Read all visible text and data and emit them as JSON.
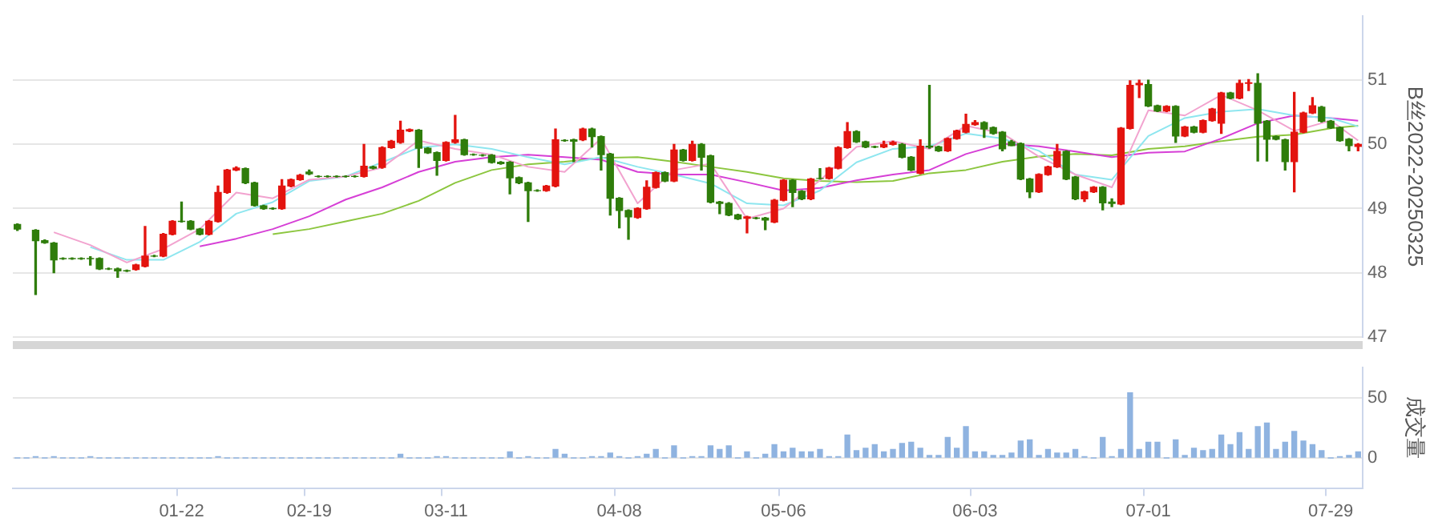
{
  "chart_data": [
    {
      "type": "candlestick",
      "tick_labels": "y",
      "ylabel": "B丝2022-20250325",
      "categories": [
        null,
        null,
        null,
        null,
        null,
        null,
        null,
        null,
        null,
        null,
        null,
        null,
        null,
        null,
        null,
        null,
        null,
        null,
        null,
        null,
        null,
        null,
        null,
        null,
        null,
        null,
        null,
        null,
        null,
        null,
        null,
        null,
        null,
        null,
        null,
        null,
        null,
        null,
        null,
        null,
        null,
        null,
        null,
        null,
        null,
        null,
        null,
        null,
        null,
        null,
        null,
        null,
        null,
        null,
        null,
        null,
        null,
        null,
        null,
        null,
        null,
        null,
        null,
        null,
        null,
        null,
        null,
        null,
        null,
        null,
        null,
        null,
        null,
        null,
        null,
        null,
        null,
        null,
        null,
        null,
        null,
        null,
        null,
        null,
        null,
        null,
        null,
        null,
        null,
        null,
        null,
        null,
        null,
        null,
        null,
        null,
        null,
        null,
        null,
        null,
        null,
        null,
        null,
        null,
        null,
        null,
        null,
        null,
        null,
        null,
        null,
        null,
        null,
        null,
        null,
        null,
        null,
        null,
        null,
        null,
        null,
        null,
        null,
        null,
        null,
        null,
        null,
        null,
        null,
        null,
        null,
        null,
        null,
        null,
        null,
        null,
        null,
        null,
        null,
        null,
        null,
        null,
        null,
        null,
        null,
        null,
        null,
        null
      ],
      "ohlc": [
        [
          48.75,
          48.76,
          48.66,
          48.68
        ],
        null,
        [
          48.66,
          48.67,
          47.66,
          48.5
        ],
        [
          48.5,
          48.51,
          48.46,
          48.47
        ],
        [
          48.46,
          48.47,
          48.0,
          48.2
        ],
        [
          48.22,
          48.23,
          48.21,
          48.22
        ],
        [
          48.22,
          48.23,
          48.21,
          48.22
        ],
        [
          48.22,
          48.23,
          48.21,
          48.22
        ],
        [
          48.22,
          48.25,
          48.12,
          48.22
        ],
        [
          48.22,
          48.23,
          48.05,
          48.06
        ],
        [
          48.06,
          48.07,
          48.05,
          48.06
        ],
        [
          48.06,
          48.07,
          47.93,
          48.03
        ],
        [
          48.03,
          48.04,
          48.02,
          48.03
        ],
        [
          48.05,
          48.13,
          48.04,
          48.12
        ],
        [
          48.1,
          48.72,
          48.09,
          48.26
        ],
        [
          48.26,
          48.27,
          48.25,
          48.26
        ],
        [
          48.26,
          48.61,
          48.25,
          48.6
        ],
        [
          48.6,
          48.81,
          48.59,
          48.8
        ],
        [
          48.8,
          49.1,
          48.79,
          48.8
        ],
        [
          48.8,
          48.81,
          48.67,
          48.68
        ],
        [
          48.68,
          48.69,
          48.59,
          48.6
        ],
        [
          48.6,
          48.81,
          48.59,
          48.8
        ],
        [
          48.8,
          49.35,
          48.79,
          49.25
        ],
        [
          49.25,
          49.61,
          49.24,
          49.6
        ],
        [
          49.6,
          49.65,
          49.59,
          49.63
        ],
        [
          49.62,
          49.63,
          49.39,
          49.4
        ],
        [
          49.4,
          49.41,
          49.04,
          49.05
        ],
        [
          49.04,
          49.05,
          48.99,
          49.0
        ],
        [
          49.0,
          49.01,
          48.99,
          49.0
        ],
        [
          49.0,
          49.45,
          48.99,
          49.35
        ],
        [
          49.35,
          49.46,
          49.34,
          49.45
        ],
        [
          49.45,
          49.53,
          49.44,
          49.52
        ],
        [
          49.57,
          49.6,
          49.53,
          49.54
        ],
        [
          49.5,
          49.51,
          49.49,
          49.5
        ],
        [
          49.5,
          49.51,
          49.49,
          49.5
        ],
        [
          49.5,
          49.51,
          49.49,
          49.5
        ],
        [
          49.5,
          49.51,
          49.49,
          49.5
        ],
        [
          49.5,
          49.51,
          49.49,
          49.5
        ],
        [
          49.5,
          50.0,
          49.49,
          49.66
        ],
        [
          49.65,
          49.66,
          49.62,
          49.63
        ],
        [
          49.64,
          49.96,
          49.63,
          49.95
        ],
        [
          49.95,
          50.06,
          49.94,
          50.05
        ],
        [
          50.03,
          50.36,
          50.02,
          50.22
        ],
        [
          50.21,
          50.24,
          50.2,
          50.23
        ],
        [
          50.22,
          50.23,
          49.64,
          49.94
        ],
        [
          49.94,
          49.95,
          49.86,
          49.87
        ],
        [
          49.87,
          49.88,
          49.52,
          49.75
        ],
        [
          49.75,
          50.04,
          49.74,
          50.03
        ],
        [
          50.03,
          50.45,
          50.02,
          50.07
        ],
        [
          50.07,
          50.08,
          49.83,
          49.84
        ],
        [
          49.84,
          49.85,
          49.83,
          49.84
        ],
        [
          49.83,
          49.84,
          49.82,
          49.83
        ],
        [
          49.83,
          49.84,
          49.71,
          49.72
        ],
        [
          49.72,
          49.73,
          49.69,
          49.7
        ],
        [
          49.72,
          49.73,
          49.23,
          49.48
        ],
        [
          49.48,
          49.49,
          49.39,
          49.4
        ],
        [
          49.4,
          49.41,
          48.8,
          49.28
        ],
        [
          49.28,
          49.29,
          49.27,
          49.28
        ],
        [
          49.28,
          49.36,
          49.27,
          49.35
        ],
        [
          49.35,
          50.24,
          49.34,
          50.07
        ],
        [
          50.06,
          50.07,
          50.05,
          50.06
        ],
        [
          50.07,
          50.08,
          49.73,
          50.05
        ],
        [
          50.07,
          50.25,
          50.06,
          50.24
        ],
        [
          50.24,
          50.25,
          49.96,
          50.12
        ],
        [
          50.12,
          50.13,
          49.6,
          49.84
        ],
        [
          49.85,
          49.86,
          48.9,
          49.16
        ],
        [
          49.16,
          49.17,
          48.7,
          48.97
        ],
        [
          48.97,
          48.98,
          48.52,
          48.87
        ],
        [
          48.86,
          49.01,
          48.85,
          49.0
        ],
        [
          49.0,
          49.43,
          48.99,
          49.33
        ],
        [
          49.33,
          49.57,
          49.32,
          49.56
        ],
        [
          49.56,
          49.57,
          49.42,
          49.43
        ],
        [
          49.43,
          50.0,
          49.42,
          49.91
        ],
        [
          49.91,
          49.92,
          49.74,
          49.75
        ],
        [
          49.75,
          50.05,
          49.74,
          50.0
        ],
        [
          50.0,
          50.01,
          49.6,
          49.8
        ],
        [
          49.82,
          49.83,
          49.09,
          49.1
        ],
        [
          49.1,
          49.11,
          48.92,
          49.08
        ],
        [
          49.08,
          49.09,
          48.89,
          48.9
        ],
        [
          48.9,
          48.91,
          48.83,
          48.84
        ],
        [
          48.85,
          48.88,
          48.62,
          48.87
        ],
        [
          48.85,
          48.86,
          48.84,
          48.85
        ],
        [
          48.85,
          48.86,
          48.67,
          48.82
        ],
        [
          48.79,
          49.14,
          48.78,
          49.13
        ],
        [
          49.13,
          49.45,
          49.12,
          49.44
        ],
        [
          49.44,
          49.45,
          49.03,
          49.25
        ],
        [
          49.27,
          49.28,
          49.14,
          49.15
        ],
        [
          49.15,
          49.47,
          49.14,
          49.46
        ],
        [
          49.47,
          49.62,
          49.46,
          49.47
        ],
        [
          49.47,
          49.64,
          49.46,
          49.63
        ],
        [
          49.63,
          49.96,
          49.62,
          49.95
        ],
        [
          49.95,
          50.34,
          49.94,
          50.2
        ],
        [
          50.2,
          50.21,
          50.03,
          50.04
        ],
        [
          50.04,
          50.05,
          49.95,
          49.96
        ],
        [
          49.96,
          49.97,
          49.95,
          49.96
        ],
        [
          49.96,
          50.05,
          49.95,
          50.0
        ],
        [
          50.0,
          50.05,
          49.99,
          50.03
        ],
        [
          50.0,
          50.01,
          49.79,
          49.8
        ],
        [
          49.8,
          49.81,
          49.59,
          49.6
        ],
        [
          49.55,
          50.07,
          49.54,
          49.97
        ],
        [
          49.97,
          50.92,
          49.94,
          49.96
        ],
        [
          49.96,
          49.97,
          49.89,
          49.9
        ],
        [
          49.9,
          50.1,
          49.89,
          50.09
        ],
        [
          50.09,
          50.22,
          50.08,
          50.21
        ],
        [
          50.19,
          50.47,
          50.18,
          50.31
        ],
        [
          50.31,
          50.37,
          50.3,
          50.34
        ],
        [
          50.34,
          50.35,
          50.11,
          50.24
        ],
        [
          50.26,
          50.27,
          50.16,
          50.17
        ],
        [
          50.19,
          50.2,
          49.9,
          49.93
        ],
        [
          50.04,
          50.06,
          49.98,
          49.98
        ],
        [
          50.01,
          50.02,
          49.45,
          49.46
        ],
        [
          49.46,
          49.47,
          49.17,
          49.26
        ],
        [
          49.26,
          49.54,
          49.25,
          49.53
        ],
        [
          49.53,
          49.66,
          49.52,
          49.65
        ],
        [
          49.65,
          50.0,
          49.64,
          49.89
        ],
        [
          49.89,
          49.9,
          49.45,
          49.46
        ],
        [
          49.49,
          49.5,
          49.14,
          49.15
        ],
        [
          49.15,
          49.27,
          49.11,
          49.26
        ],
        [
          49.26,
          49.34,
          49.25,
          49.33
        ],
        [
          49.33,
          49.34,
          48.98,
          49.09
        ],
        [
          49.1,
          49.15,
          49.03,
          49.08
        ],
        [
          49.07,
          50.26,
          49.06,
          50.25
        ],
        [
          50.25,
          50.99,
          50.24,
          50.92
        ],
        [
          50.93,
          51.0,
          50.73,
          50.95
        ],
        [
          50.93,
          51.0,
          50.59,
          50.6
        ],
        [
          50.6,
          50.61,
          50.51,
          50.52
        ],
        [
          50.52,
          50.6,
          50.51,
          50.59
        ],
        [
          50.59,
          50.6,
          50.03,
          50.13
        ],
        [
          50.13,
          50.28,
          50.12,
          50.27
        ],
        [
          50.27,
          50.28,
          50.18,
          50.19
        ],
        [
          50.19,
          50.38,
          50.18,
          50.37
        ],
        [
          50.37,
          50.56,
          50.36,
          50.55
        ],
        [
          50.33,
          50.81,
          50.17,
          50.8
        ],
        [
          50.8,
          50.81,
          50.71,
          50.72
        ],
        [
          50.72,
          51.0,
          50.71,
          50.95
        ],
        [
          50.95,
          51.01,
          50.84,
          50.96
        ],
        [
          50.95,
          51.1,
          49.74,
          50.33
        ],
        [
          50.36,
          50.37,
          49.74,
          50.08
        ],
        [
          50.12,
          50.13,
          50.07,
          50.08
        ],
        [
          50.07,
          50.08,
          49.6,
          49.73
        ],
        [
          49.73,
          50.81,
          49.26,
          50.19
        ],
        [
          50.19,
          50.5,
          50.18,
          50.49
        ],
        [
          50.49,
          50.73,
          50.48,
          50.6
        ],
        [
          50.58,
          50.59,
          50.35,
          50.36
        ],
        [
          50.36,
          50.37,
          50.25,
          50.26
        ],
        [
          50.26,
          50.27,
          50.05,
          50.06
        ],
        [
          50.08,
          50.09,
          49.9,
          49.98
        ],
        [
          49.97,
          50.01,
          49.9,
          50.0
        ]
      ],
      "colors": [
        "#2f7d0b",
        null,
        "#2f7d0b",
        "#2f7d0b",
        "#2f7d0b",
        "#2f7d0b",
        "#2f7d0b",
        "#2f7d0b",
        "#2f7d0b",
        "#2f7d0b",
        "#2f7d0b",
        "#2f7d0b",
        "#2f7d0b",
        "#e3140f",
        "#e3140f",
        "#2f7d0b",
        "#e3140f",
        "#e3140f",
        "#2f7d0b",
        "#2f7d0b",
        "#2f7d0b",
        "#e3140f",
        "#e3140f",
        "#e3140f",
        "#e3140f",
        "#2f7d0b",
        "#2f7d0b",
        "#2f7d0b",
        "#2f7d0b",
        "#e3140f",
        "#e3140f",
        "#e3140f",
        "#2f7d0b",
        "#2f7d0b",
        "#2f7d0b",
        "#2f7d0b",
        "#2f7d0b",
        "#2f7d0b",
        "#e3140f",
        "#2f7d0b",
        "#e3140f",
        "#e3140f",
        "#e3140f",
        "#e3140f",
        "#2f7d0b",
        "#2f7d0b",
        "#2f7d0b",
        "#e3140f",
        "#e3140f",
        "#2f7d0b",
        "#2f7d0b",
        "#2f7d0b",
        "#2f7d0b",
        "#2f7d0b",
        "#2f7d0b",
        "#2f7d0b",
        "#2f7d0b",
        "#2f7d0b",
        "#e3140f",
        "#e3140f",
        "#2f7d0b",
        "#2f7d0b",
        "#e3140f",
        "#2f7d0b",
        "#2f7d0b",
        "#2f7d0b",
        "#2f7d0b",
        "#2f7d0b",
        "#e3140f",
        "#e3140f",
        "#e3140f",
        "#2f7d0b",
        "#e3140f",
        "#2f7d0b",
        "#e3140f",
        "#2f7d0b",
        "#2f7d0b",
        "#2f7d0b",
        "#2f7d0b",
        "#2f7d0b",
        "#e3140f",
        "#2f7d0b",
        "#2f7d0b",
        "#e3140f",
        "#e3140f",
        "#2f7d0b",
        "#2f7d0b",
        "#e3140f",
        "#2f7d0b",
        "#e3140f",
        "#e3140f",
        "#e3140f",
        "#2f7d0b",
        "#2f7d0b",
        "#2f7d0b",
        "#e3140f",
        "#e3140f",
        "#2f7d0b",
        "#2f7d0b",
        "#e3140f",
        "#2f7d0b",
        "#2f7d0b",
        "#e3140f",
        "#e3140f",
        "#e3140f",
        "#e3140f",
        "#2f7d0b",
        "#2f7d0b",
        "#2f7d0b",
        "#2f7d0b",
        "#2f7d0b",
        "#2f7d0b",
        "#e3140f",
        "#e3140f",
        "#e3140f",
        "#2f7d0b",
        "#2f7d0b",
        "#e3140f",
        "#e3140f",
        "#2f7d0b",
        "#2f7d0b",
        "#e3140f",
        "#e3140f",
        "#e3140f",
        "#2f7d0b",
        "#2f7d0b",
        "#e3140f",
        "#2f7d0b",
        "#e3140f",
        "#2f7d0b",
        "#e3140f",
        "#e3140f",
        "#e3140f",
        "#2f7d0b",
        "#e3140f",
        "#e3140f",
        "#2f7d0b",
        "#2f7d0b",
        "#2f7d0b",
        "#2f7d0b",
        "#e3140f",
        "#e3140f",
        "#e3140f",
        "#2f7d0b",
        "#2f7d0b",
        "#2f7d0b",
        "#2f7d0b",
        "#e3140f"
      ],
      "series": [
        {
          "type": "line",
          "color": "#f2a3cf",
          "values": [
            null,
            null,
            null,
            null,
            48.63,
            null,
            null,
            null,
            48.43,
            null,
            null,
            null,
            48.16,
            null,
            null,
            null,
            48.37,
            null,
            null,
            null,
            48.68,
            null,
            null,
            null,
            49.25,
            null,
            null,
            null,
            49.16,
            null,
            null,
            null,
            49.45,
            null,
            null,
            null,
            49.5,
            null,
            null,
            null,
            49.64,
            null,
            null,
            null,
            50.06,
            null,
            null,
            null,
            49.93,
            null,
            null,
            null,
            49.84,
            null,
            null,
            null,
            49.65,
            null,
            null,
            null,
            49.57,
            null,
            null,
            null,
            50.09,
            null,
            null,
            null,
            49.08,
            null,
            null,
            null,
            49.6,
            null,
            null,
            null,
            49.7,
            null,
            null,
            null,
            48.84,
            null,
            null,
            null,
            49.0,
            null,
            null,
            null,
            49.44,
            null,
            null,
            null,
            49.96,
            null,
            null,
            null,
            50.05,
            null,
            null,
            null,
            49.93,
            null,
            null,
            null,
            50.29,
            null,
            null,
            null,
            50.17,
            null,
            null,
            null,
            49.81,
            null,
            null,
            null,
            49.53,
            null,
            null,
            null,
            49.33,
            null,
            49.9,
            null,
            50.53,
            null,
            null,
            null,
            50.45,
            null,
            null,
            null,
            50.77,
            null,
            null,
            null,
            50.53,
            null,
            null,
            null,
            50.21,
            null,
            null,
            null,
            50.37,
            null,
            null,
            50.06
          ]
        },
        {
          "type": "line",
          "color": "#8ee6ef",
          "values": [
            null,
            null,
            null,
            null,
            null,
            null,
            null,
            null,
            48.4,
            null,
            null,
            null,
            48.2,
            null,
            null,
            null,
            48.2,
            null,
            null,
            null,
            48.48,
            null,
            null,
            null,
            48.92,
            null,
            null,
            null,
            49.1,
            null,
            null,
            null,
            49.43,
            null,
            null,
            null,
            49.5,
            null,
            null,
            null,
            49.72,
            null,
            null,
            null,
            49.95,
            null,
            null,
            null,
            50.0,
            null,
            null,
            null,
            49.93,
            null,
            null,
            null,
            49.8,
            null,
            null,
            null,
            49.69,
            null,
            null,
            null,
            49.8,
            null,
            null,
            null,
            49.65,
            null,
            null,
            null,
            49.53,
            null,
            null,
            null,
            49.39,
            null,
            null,
            null,
            49.08,
            null,
            null,
            null,
            49.05,
            null,
            null,
            null,
            49.28,
            null,
            null,
            null,
            49.72,
            null,
            null,
            null,
            49.93,
            null,
            null,
            null,
            49.97,
            null,
            null,
            null,
            50.17,
            null,
            null,
            null,
            50.09,
            null,
            null,
            null,
            49.9,
            null,
            null,
            null,
            49.53,
            null,
            null,
            null,
            49.45,
            null,
            null,
            null,
            50.13,
            null,
            null,
            null,
            50.41,
            null,
            null,
            null,
            50.51,
            null,
            null,
            null,
            50.55,
            null,
            null,
            null,
            50.45,
            null,
            null,
            null,
            50.41,
            null,
            null,
            50.28
          ]
        },
        {
          "type": "line",
          "color": "#d63fd6",
          "values": [
            null,
            null,
            null,
            null,
            null,
            null,
            null,
            null,
            null,
            null,
            null,
            null,
            null,
            null,
            null,
            null,
            null,
            null,
            null,
            null,
            48.41,
            null,
            null,
            null,
            48.53,
            null,
            null,
            null,
            48.68,
            null,
            null,
            null,
            48.88,
            null,
            null,
            null,
            49.14,
            null,
            null,
            null,
            49.33,
            null,
            null,
            null,
            49.57,
            null,
            null,
            null,
            49.73,
            null,
            null,
            null,
            49.8,
            null,
            null,
            null,
            49.84,
            null,
            null,
            null,
            49.8,
            null,
            null,
            null,
            49.76,
            null,
            null,
            null,
            49.57,
            null,
            null,
            null,
            49.53,
            null,
            null,
            null,
            49.53,
            null,
            null,
            null,
            49.41,
            null,
            null,
            null,
            49.28,
            null,
            null,
            null,
            49.32,
            null,
            null,
            null,
            49.44,
            null,
            null,
            null,
            49.53,
            null,
            null,
            null,
            49.6,
            null,
            null,
            null,
            49.85,
            null,
            null,
            null,
            50.01,
            null,
            null,
            null,
            49.97,
            null,
            null,
            null,
            49.89,
            null,
            null,
            null,
            49.8,
            null,
            null,
            null,
            49.87,
            null,
            null,
            null,
            49.89,
            null,
            null,
            null,
            50.09,
            null,
            null,
            null,
            50.33,
            null,
            null,
            null,
            50.45,
            null,
            null,
            null,
            50.41,
            null,
            null,
            50.37
          ]
        },
        {
          "type": "line",
          "color": "#8cc63f",
          "values": [
            null,
            null,
            null,
            null,
            null,
            null,
            null,
            null,
            null,
            null,
            null,
            null,
            null,
            null,
            null,
            null,
            null,
            null,
            null,
            null,
            null,
            null,
            null,
            null,
            null,
            null,
            null,
            null,
            48.6,
            null,
            null,
            null,
            48.68,
            null,
            null,
            null,
            48.8,
            null,
            null,
            null,
            48.92,
            null,
            null,
            null,
            49.12,
            null,
            null,
            null,
            49.4,
            null,
            null,
            null,
            49.6,
            null,
            null,
            null,
            49.69,
            null,
            null,
            null,
            49.73,
            null,
            null,
            null,
            49.79,
            null,
            null,
            null,
            49.8,
            null,
            null,
            null,
            49.73,
            null,
            null,
            null,
            49.65,
            null,
            null,
            null,
            49.57,
            null,
            null,
            null,
            49.47,
            null,
            null,
            null,
            49.43,
            null,
            null,
            null,
            49.41,
            null,
            null,
            null,
            49.43,
            null,
            null,
            null,
            49.55,
            null,
            null,
            null,
            49.6,
            null,
            null,
            null,
            49.73,
            null,
            null,
            null,
            49.81,
            null,
            null,
            null,
            49.85,
            null,
            null,
            null,
            49.83,
            null,
            null,
            null,
            49.93,
            null,
            null,
            null,
            49.97,
            null,
            null,
            null,
            50.05,
            null,
            null,
            null,
            50.12,
            null,
            null,
            null,
            50.15,
            null,
            null,
            null,
            50.25,
            null,
            null,
            50.29
          ]
        }
      ],
      "ylim": [
        47,
        52
      ],
      "yticks": [
        47,
        48,
        49,
        50,
        51
      ],
      "grid": "y"
    },
    {
      "type": "bar",
      "ylabel": "成交量",
      "color": "#8fb3e0",
      "categories": [
        null,
        null,
        null,
        null,
        null,
        null,
        null,
        null,
        null,
        null,
        null,
        null,
        null,
        null,
        null,
        null,
        null,
        null,
        "01-22",
        null,
        null,
        null,
        null,
        null,
        null,
        null,
        null,
        null,
        null,
        null,
        null,
        null,
        "02-19",
        null,
        null,
        null,
        null,
        null,
        null,
        null,
        null,
        null,
        null,
        null,
        null,
        null,
        null,
        "03-11",
        null,
        null,
        null,
        null,
        null,
        null,
        null,
        null,
        null,
        null,
        null,
        null,
        null,
        null,
        null,
        null,
        null,
        null,
        "04-08",
        null,
        null,
        null,
        null,
        null,
        null,
        null,
        null,
        null,
        null,
        null,
        null,
        null,
        null,
        null,
        null,
        null,
        "05-06",
        null,
        null,
        null,
        null,
        null,
        null,
        null,
        null,
        null,
        null,
        null,
        null,
        null,
        null,
        null,
        null,
        null,
        null,
        null,
        null,
        "06-03",
        null,
        null,
        null,
        null,
        null,
        null,
        null,
        null,
        null,
        null,
        null,
        null,
        null,
        null,
        null,
        null,
        null,
        null,
        "07-01",
        null,
        null,
        null,
        null,
        null,
        null,
        null,
        null,
        null,
        null,
        null,
        null,
        null,
        null,
        null,
        null,
        null,
        null,
        null,
        "07-29",
        null,
        null,
        null
      ],
      "values": [
        0,
        0,
        1,
        0,
        1,
        0,
        0,
        0,
        1,
        0,
        0,
        0,
        0,
        0,
        0,
        0,
        0,
        0,
        0,
        0,
        0,
        0,
        1,
        0,
        0,
        0,
        0,
        0,
        0,
        0,
        0,
        0,
        0,
        0,
        0,
        0,
        0,
        0,
        0,
        0,
        0,
        0,
        3,
        0,
        0,
        0,
        1,
        1,
        0,
        0,
        0,
        0,
        0,
        0,
        5,
        0,
        1,
        0,
        0,
        7,
        3,
        0,
        0,
        1,
        1,
        4,
        1,
        0,
        1,
        3,
        7,
        0,
        10,
        0,
        1,
        1,
        10,
        7,
        10,
        0,
        5,
        0,
        3,
        11,
        5,
        8,
        5,
        5,
        7,
        1,
        1,
        19,
        6,
        8,
        11,
        5,
        7,
        12,
        13,
        8,
        2,
        2,
        17,
        8,
        26,
        5,
        5,
        2,
        2,
        4,
        14,
        15,
        2,
        7,
        4,
        4,
        7,
        1,
        0,
        17,
        1,
        7,
        54,
        7,
        13,
        13,
        0,
        15,
        2,
        8,
        6,
        7,
        19,
        11,
        21,
        7,
        26,
        29,
        7,
        13,
        22,
        14,
        11,
        6,
        0,
        1,
        2,
        5
      ],
      "ylim": [
        -25,
        75
      ],
      "yticks": [
        0,
        50
      ],
      "grid": "y"
    }
  ]
}
